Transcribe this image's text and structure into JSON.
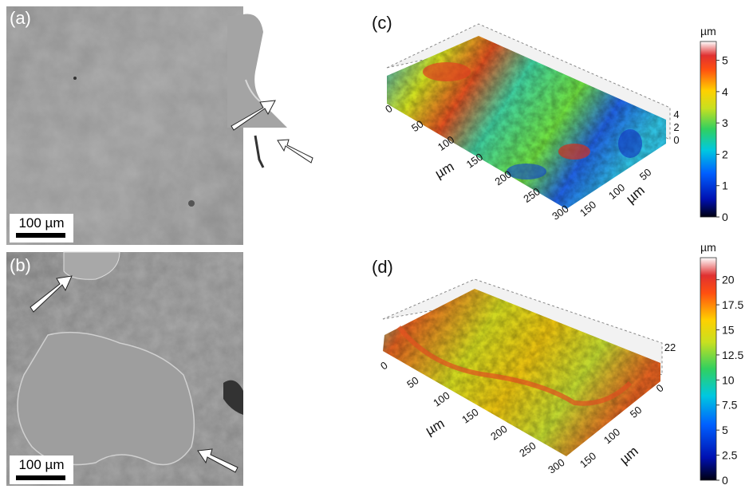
{
  "panels": [
    {
      "label": "(a)",
      "scale_bar": "100 µm"
    },
    {
      "label": "(b)",
      "scale_bar": "100 µm"
    },
    {
      "label": "(c)",
      "x_ticks": [
        0,
        50,
        100,
        150,
        200,
        250,
        300
      ],
      "x_title": "µm",
      "y_ticks": [
        50,
        100,
        150
      ],
      "y_title": "µm",
      "z_ticks": [
        0,
        2,
        4
      ],
      "colorbar": {
        "unit": "µm",
        "range": [
          0,
          5.6
        ],
        "ticks": [
          0,
          1,
          2,
          3,
          4,
          5
        ]
      }
    },
    {
      "label": "(d)",
      "x_ticks": [
        0,
        50,
        100,
        150,
        200,
        250,
        300
      ],
      "x_title": "µm",
      "y_ticks": [
        0,
        50,
        100,
        150
      ],
      "y_title": "µm",
      "z_ticks": [
        22
      ],
      "colorbar": {
        "unit": "µm",
        "range": [
          0,
          22.2
        ],
        "ticks": [
          0,
          2.5,
          5,
          7.5,
          10,
          12.5,
          15,
          17.5,
          20
        ]
      }
    }
  ]
}
